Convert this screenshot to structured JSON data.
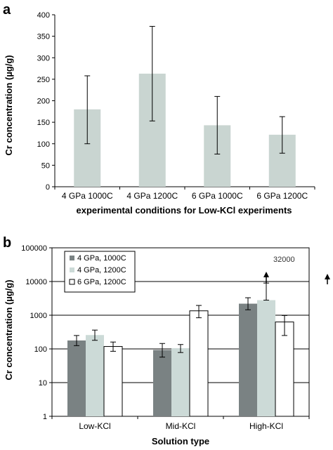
{
  "chart_data": [
    {
      "panel": "a",
      "type": "bar",
      "categories": [
        "4 GPa 1000C",
        "4 GPa 1200C",
        "6 GPa 1000C",
        "6 GPa 1200C"
      ],
      "values": [
        180,
        263,
        143,
        121
      ],
      "error_low": [
        100,
        153,
        76,
        78
      ],
      "error_high": [
        258,
        373,
        210,
        163
      ],
      "ylabel": "Cr concentration (µg/g)",
      "xlabel": "experimental conditions for Low-KCl experiments",
      "ylim": [
        0,
        400
      ],
      "yticks": [
        0,
        50,
        100,
        150,
        200,
        250,
        300,
        350,
        400
      ],
      "ytick_labels": [
        "0",
        "50",
        "100",
        "150",
        "200",
        "250",
        "300",
        "350",
        "400"
      ],
      "grid": false,
      "colors": {
        "bar": "#c9d5d1"
      }
    },
    {
      "panel": "b",
      "type": "bar",
      "scale": "log",
      "categories": [
        "Low-KCl",
        "Mid-KCl",
        "High-KCl"
      ],
      "series": [
        {
          "name": "4 GPa, 1000C",
          "color": "#7a8283",
          "values": [
            178,
            93,
            2200
          ],
          "error_low": [
            125,
            57,
            1450
          ],
          "error_high": [
            250,
            145,
            3300
          ]
        },
        {
          "name": "4 GPa, 1200C",
          "color": "#ccdad7",
          "values": [
            258,
            105,
            2800
          ],
          "error_low": [
            180,
            78,
            2800
          ],
          "error_high": [
            362,
            135,
            9000
          ]
        },
        {
          "name": "6 GPa, 1200C",
          "color": "#ffffff",
          "values": [
            118,
            1350,
            630
          ],
          "error_low": [
            85,
            840,
            250
          ],
          "error_high": [
            160,
            1950,
            980
          ]
        }
      ],
      "ylabel": "Cr concentration (µg/g)",
      "xlabel": "Solution type",
      "ylim": [
        1,
        100000
      ],
      "yticks": [
        1,
        10,
        100,
        1000,
        10000,
        100000
      ],
      "ytick_labels": [
        "1",
        "10",
        "100",
        "1000",
        "10000",
        "100000"
      ],
      "grid": true,
      "legend_position": "top-left",
      "annotation": "32000",
      "annotation_value": 32000
    }
  ]
}
